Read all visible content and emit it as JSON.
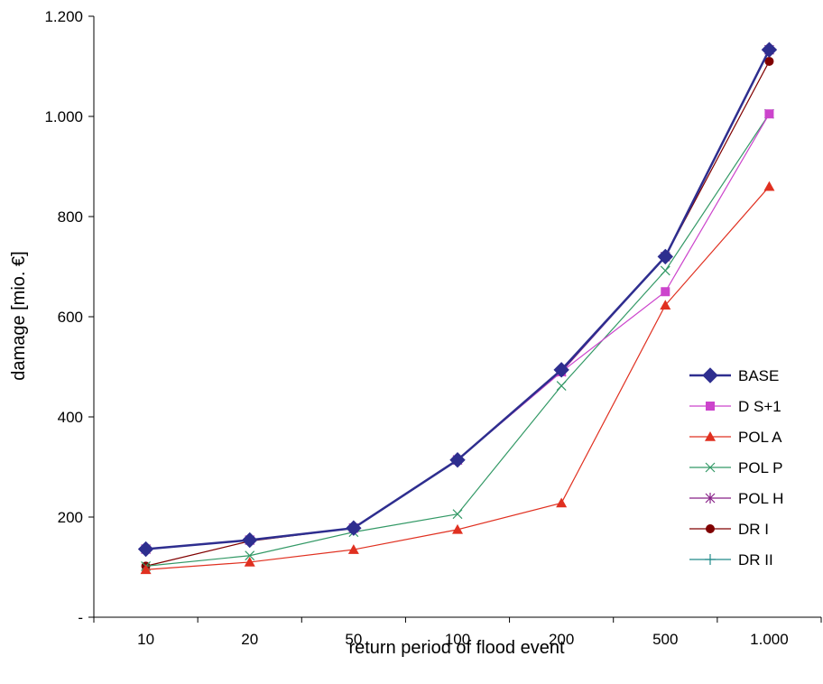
{
  "chart_data": {
    "type": "line",
    "title": "",
    "xlabel": "return period of flood event",
    "ylabel": "damage [mio. €]",
    "categories": [
      "10",
      "20",
      "50",
      "100",
      "200",
      "500",
      "1.000"
    ],
    "ylim": [
      0,
      1200
    ],
    "yticks": [
      0,
      200,
      400,
      600,
      800,
      1000,
      1200
    ],
    "ytick_labels": [
      "-",
      "200",
      "400",
      "600",
      "800",
      "1.000",
      "1.200"
    ],
    "grid": false,
    "legend_position": "right",
    "series": [
      {
        "name": "BASE",
        "color": "#2e2e8f",
        "marker": "diamond",
        "values": [
          136,
          154,
          178,
          314,
          494,
          720,
          1133
        ]
      },
      {
        "name": "D S+1",
        "color": "#cc44cc",
        "marker": "square",
        "values": [
          136,
          154,
          178,
          314,
          490,
          650,
          1005
        ]
      },
      {
        "name": "POL A",
        "color": "#e03020",
        "marker": "triangle",
        "values": [
          95,
          110,
          135,
          175,
          228,
          623,
          860
        ]
      },
      {
        "name": "POL P",
        "color": "#339966",
        "marker": "x",
        "values": [
          102,
          123,
          170,
          206,
          462,
          692,
          1005
        ]
      },
      {
        "name": "POL H",
        "color": "#882288",
        "marker": "star",
        "values": [
          136,
          154,
          178,
          314,
          490,
          720,
          1133
        ]
      },
      {
        "name": "DR I",
        "color": "#800000",
        "marker": "circle",
        "values": [
          102,
          152,
          178,
          314,
          494,
          720,
          1110
        ]
      },
      {
        "name": "DR II",
        "color": "#228b8b",
        "marker": "plus",
        "values": [
          136,
          154,
          178,
          314,
          494,
          720,
          1133
        ]
      }
    ]
  }
}
